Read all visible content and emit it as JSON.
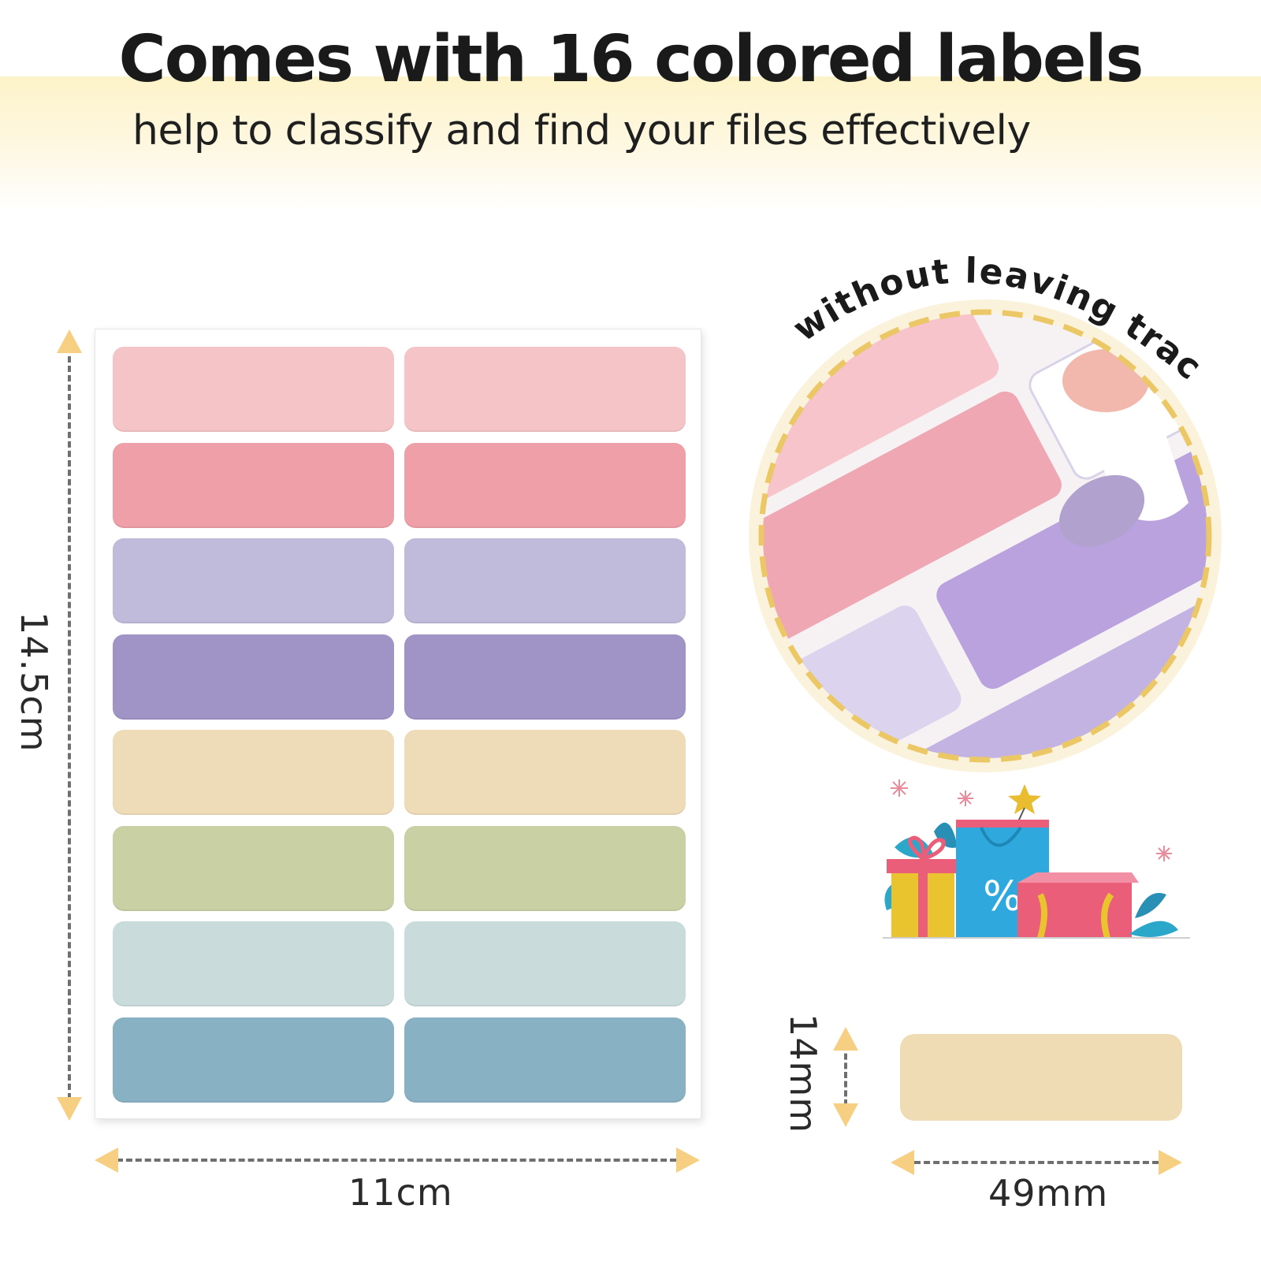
{
  "header": {
    "title": "Comes with 16 colored labels",
    "subtitle": "help to classify and find your files effectively"
  },
  "sheet": {
    "height_label": "14.5cm",
    "width_label": "11cm",
    "rows": [
      {
        "color": "#f4c4c6"
      },
      {
        "color": "#ee9fa8"
      },
      {
        "color": "#c0badb"
      },
      {
        "color": "#a094c6"
      },
      {
        "color": "#eedbb7"
      },
      {
        "color": "#c9d0a3"
      },
      {
        "color": "#c9dbdb"
      },
      {
        "color": "#89b1c4"
      }
    ]
  },
  "closeup": {
    "caption": "without leaving traces"
  },
  "single_label": {
    "height_label": "14mm",
    "width_label": "49mm",
    "color": "#f0dcb4"
  },
  "decor": {
    "gift_icon": "gift-shopping-icon",
    "bag_symbol": "%"
  },
  "colors": {
    "accent_arrow": "#f7cf82",
    "dashed_line": "#6f6f6f",
    "header_band": "#fdf3c9"
  }
}
